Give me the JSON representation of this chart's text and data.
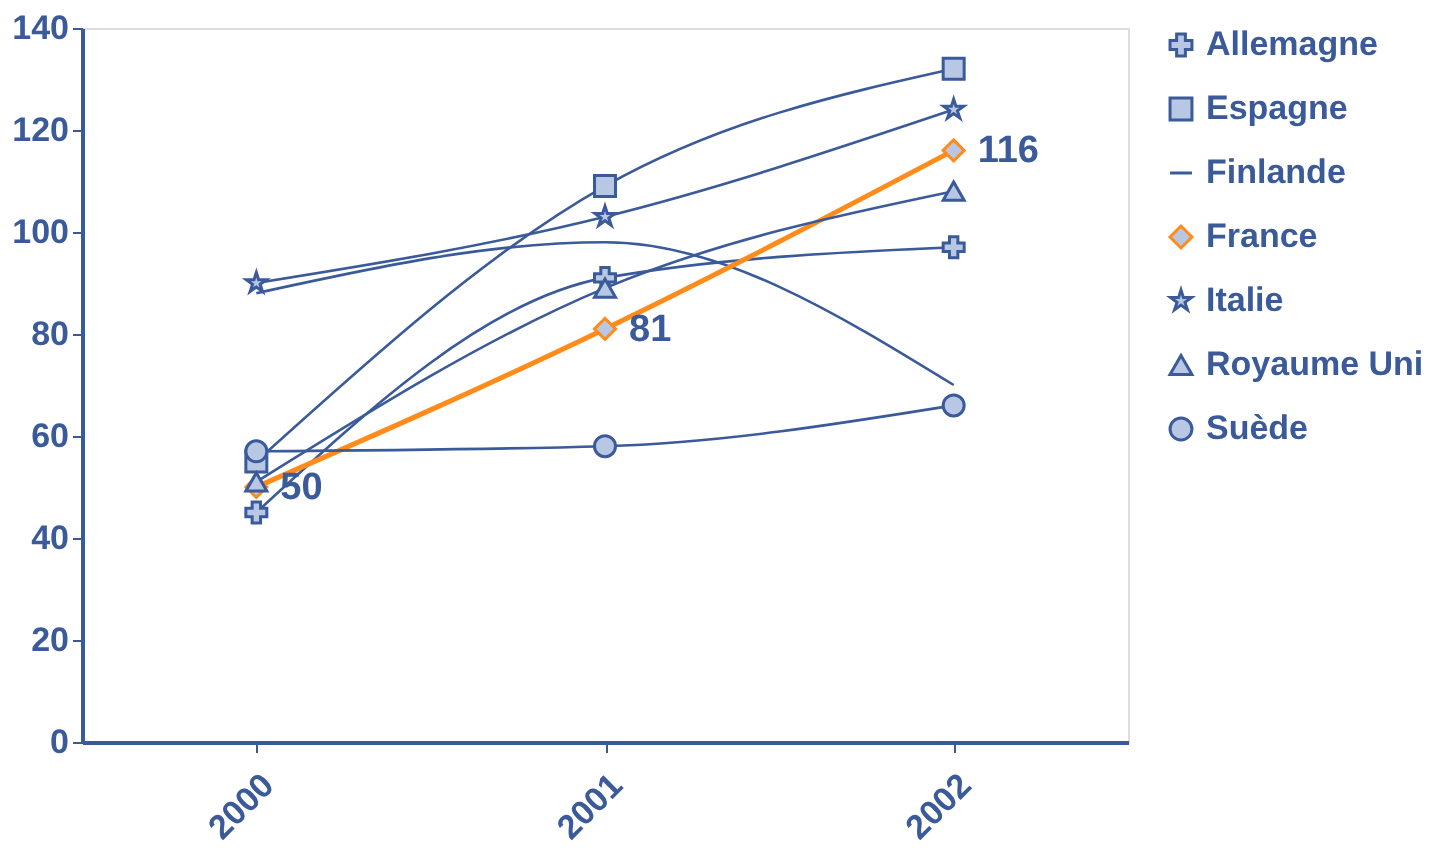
{
  "chart_data": {
    "type": "line",
    "categories": [
      "2000",
      "2001",
      "2002"
    ],
    "ylim": [
      0,
      140
    ],
    "yticks": [
      0,
      20,
      40,
      60,
      80,
      100,
      120,
      140
    ],
    "grid": false,
    "legend": "right",
    "series": [
      {
        "name": "Allemagne",
        "color": "#3a5a9a",
        "marker": "cross",
        "values": [
          45,
          91,
          97
        ]
      },
      {
        "name": "Espagne",
        "color": "#3a5a9a",
        "marker": "square",
        "values": [
          55,
          109,
          132
        ]
      },
      {
        "name": "Finlande",
        "color": "#3a5a9a",
        "marker": "none",
        "values": [
          88,
          98,
          70
        ]
      },
      {
        "name": "France",
        "color": "#ff8c1a",
        "marker": "diamond",
        "values": [
          50,
          81,
          116
        ],
        "value_labels": [
          "50",
          "81",
          "116"
        ]
      },
      {
        "name": "Italie",
        "color": "#3a5a9a",
        "marker": "star",
        "values": [
          90,
          103,
          124
        ]
      },
      {
        "name": "Royaume Uni",
        "color": "#3a5a9a",
        "marker": "triangle",
        "values": [
          51,
          89,
          108
        ]
      },
      {
        "name": "Suède",
        "color": "#3a5a9a",
        "marker": "circle",
        "values": [
          57,
          58,
          66
        ]
      }
    ]
  }
}
